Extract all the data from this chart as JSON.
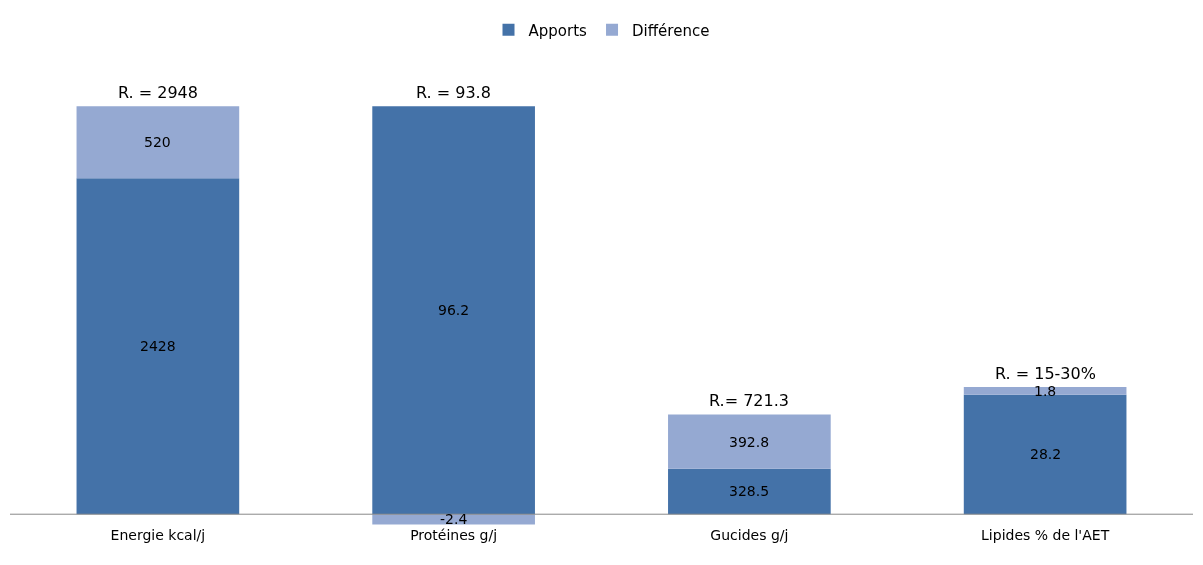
{
  "chart_data": {
    "type": "bar",
    "stacked": true,
    "legend": "top",
    "data_labels": true,
    "categories": [
      "Energie kcal/j",
      "Protéines g/j",
      "Gucides g/j",
      "Lipides % de l'AET"
    ],
    "series": [
      {
        "name": "Apports",
        "color": "#4472a8",
        "values": [
          2428,
          null,
          328.5,
          null
        ]
      },
      {
        "name": "Différence",
        "color": "#95a9d2",
        "values": [
          520,
          null,
          392.8,
          null
        ]
      },
      {
        "color": "#4472a8",
        "axis": "y2",
        "values": [
          null,
          96.2,
          null,
          28.2
        ]
      },
      {
        "color": "#95a9d2",
        "axis": "y2",
        "values": [
          null,
          -2.4,
          null,
          1.8
        ]
      }
    ],
    "annotations": [
      "R. = 2948",
      "R. = 93.8",
      "R.= 721.3",
      "R. = 15-30%"
    ]
  }
}
